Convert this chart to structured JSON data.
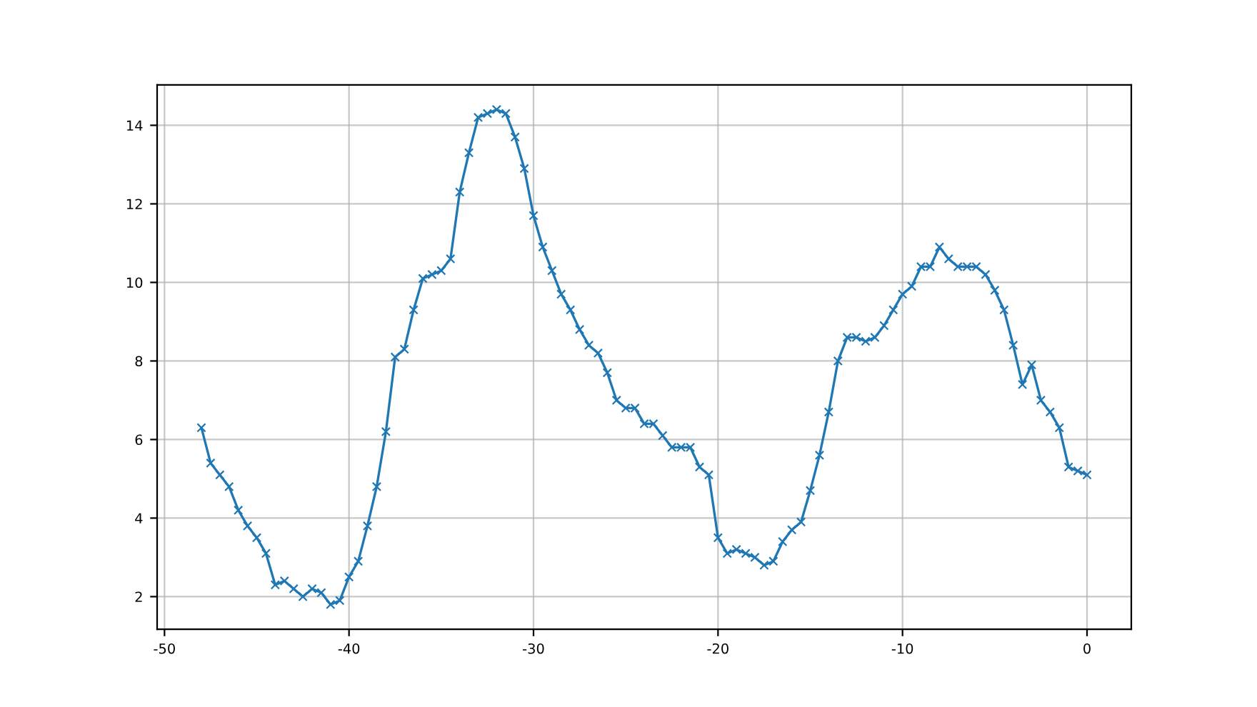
{
  "chart_data": {
    "type": "line",
    "x": [
      -48,
      -47.5,
      -47,
      -46.5,
      -46,
      -45.5,
      -45,
      -44.5,
      -44,
      -43.5,
      -43,
      -42.5,
      -42,
      -41.5,
      -41,
      -40.5,
      -40,
      -39.5,
      -39,
      -38.5,
      -38,
      -37.5,
      -37,
      -36.5,
      -36,
      -35.5,
      -35,
      -34.5,
      -34,
      -33.5,
      -33,
      -32.5,
      -32,
      -31.5,
      -31,
      -30.5,
      -30,
      -29.5,
      -29,
      -28.5,
      -28,
      -27.5,
      -27,
      -26.5,
      -26,
      -25.5,
      -25,
      -24.5,
      -24,
      -23.5,
      -23,
      -22.5,
      -22,
      -21.5,
      -21,
      -20.5,
      -20,
      -19.5,
      -19,
      -18.5,
      -18,
      -17.5,
      -17,
      -16.5,
      -16,
      -15.5,
      -15,
      -14.5,
      -14,
      -13.5,
      -13,
      -12.5,
      -12,
      -11.5,
      -11,
      -10.5,
      -10,
      -9.5,
      -9,
      -8.5,
      -8,
      -7.5,
      -7,
      -6.5,
      -6,
      -5.5,
      -5,
      -4.5,
      -4,
      -3.5,
      -3,
      -2.5,
      -2,
      -1.5,
      -1,
      -0.5,
      0
    ],
    "series": [
      {
        "color": "#1f77b4",
        "values": [
          6.3,
          5.4,
          5.1,
          4.8,
          4.2,
          3.8,
          3.5,
          3.1,
          2.3,
          2.4,
          2.2,
          2.0,
          2.2,
          2.1,
          1.8,
          1.9,
          2.5,
          2.9,
          3.8,
          4.8,
          6.2,
          8.1,
          8.3,
          9.3,
          10.1,
          10.2,
          10.3,
          10.6,
          12.3,
          13.3,
          14.2,
          14.3,
          14.4,
          14.3,
          13.7,
          12.9,
          11.7,
          10.9,
          10.3,
          9.7,
          9.3,
          8.8,
          8.4,
          8.2,
          7.7,
          7.0,
          6.8,
          6.8,
          6.4,
          6.4,
          6.1,
          5.8,
          5.8,
          5.8,
          5.3,
          5.1,
          3.5,
          3.1,
          3.2,
          3.1,
          3.0,
          2.8,
          2.9,
          3.4,
          3.7,
          3.9,
          4.7,
          5.6,
          6.7,
          8.0,
          8.6,
          8.6,
          8.5,
          8.6,
          8.9,
          9.3,
          9.7,
          9.9,
          10.4,
          10.4,
          10.9,
          10.6,
          10.4,
          10.4,
          10.4,
          10.2,
          9.8,
          9.3,
          8.4,
          7.4,
          7.9,
          7.0,
          6.7,
          6.3,
          5.3,
          5.2,
          5.1
        ]
      }
    ],
    "xlim": [
      -50.4,
      2.4
    ],
    "ylim": [
      1.17,
      15.03
    ],
    "xticks": [
      -50,
      -40,
      -30,
      -20,
      -10,
      0
    ],
    "yticks": [
      2,
      4,
      6,
      8,
      10,
      12,
      14
    ],
    "grid": true,
    "marker": "cross",
    "line_style": "solid"
  }
}
